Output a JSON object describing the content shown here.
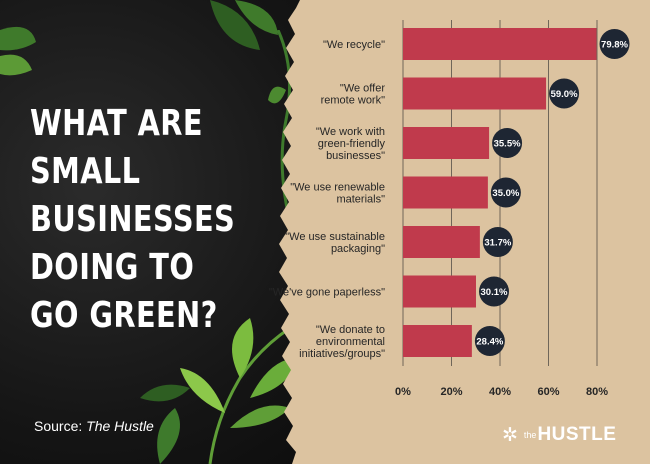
{
  "chart_data": {
    "type": "bar",
    "orientation": "horizontal",
    "title": "WHAT ARE SMALL BUSINESSES DOING TO GO GREEN?",
    "categories": [
      "\"We recycle\"",
      "\"We offer remote work\"",
      "\"We work with green-friendly businesses\"",
      "\"We use renewable materials\"",
      "\"We use sustainable packaging\"",
      "\"We've gone paperless\"",
      "\"We donate to environmental initiatives/groups\""
    ],
    "values": [
      79.8,
      59.0,
      35.5,
      35.0,
      31.7,
      30.1,
      28.4
    ],
    "value_labels": [
      "79.8%",
      "59.0%",
      "35.5%",
      "35.0%",
      "31.7%",
      "30.1%",
      "28.4%"
    ],
    "xlim": [
      0,
      80
    ],
    "xticks": [
      0,
      20,
      40,
      60,
      80
    ],
    "xtick_labels": [
      "0%",
      "20%",
      "40%",
      "60%",
      "80%"
    ],
    "xlabel": "",
    "ylabel": "",
    "grid": true,
    "bar_color": "#c03a4c",
    "label_badge_color": "#1e2633"
  },
  "headline": {
    "lines": [
      "WHAT ARE",
      "SMALL",
      "BUSINESSES",
      "DOING TO",
      "GO GREEN?"
    ]
  },
  "source": {
    "prefix": "Source: ",
    "name": "The Hustle"
  },
  "brand": {
    "mark": "✲",
    "the": "the",
    "name": "HUSTLE"
  },
  "colors": {
    "paper": "#dcc3a0",
    "background": "#151515",
    "text_dark": "#262626"
  }
}
